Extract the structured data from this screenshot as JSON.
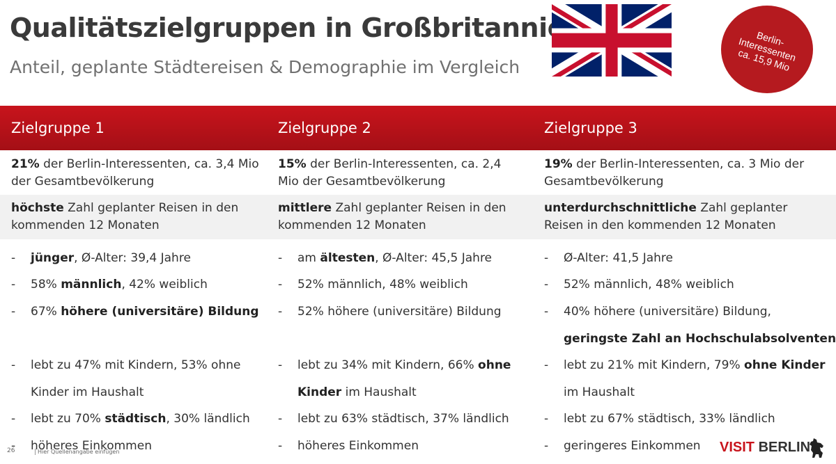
{
  "title": "Qualitätszielgruppen in Großbritannien",
  "subtitle": "Anteil, geplante Städtereisen & Demographie im Vergleich",
  "badge": {
    "line1": "Berlin-",
    "line2": "Interessenten",
    "line3": "ca. 15,9 Mio"
  },
  "accent_color": "#c8141c",
  "groups": [
    {
      "name": "Zielgruppe 1",
      "share_bold": "21%",
      "share_rest": " der Berlin-Interessenten, ca. 3,4 Mio der Gesamtbevölkerung",
      "trips_bold": "höchste",
      "trips_rest": " Zahl geplanter Reisen in den kommenden 12 Monaten",
      "items": [
        {
          "b": "jünger",
          "t": ", Ø-Alter: 39,4 Jahre"
        },
        {
          "pre": "58% ",
          "b": "männlich",
          "t": ", 42% weiblich"
        },
        {
          "pre": "67% ",
          "b": "höhere (universitäre) Bildung",
          "t": ""
        },
        {
          "t": "lebt zu 47% mit Kindern, 53% ohne"
        },
        {
          "t": "Kinder im Haushalt"
        },
        {
          "pre": "lebt zu 70% ",
          "b": "städtisch",
          "t": ", 30% ländlich"
        },
        {
          "t": "höheres Einkommen"
        }
      ]
    },
    {
      "name": "Zielgruppe 2",
      "share_bold": "15%",
      "share_rest": " der Berlin-Interessenten, ca. 2,4 Mio der Gesamtbevölkerung",
      "trips_bold": "mittlere",
      "trips_rest": " Zahl geplanter Reisen in den kommenden 12 Monaten",
      "items": [
        {
          "pre": "am ",
          "b": "ältesten",
          "t": ", Ø-Alter: 45,5 Jahre"
        },
        {
          "t": "52% männlich, 48% weiblich"
        },
        {
          "t": "52% höhere (universitäre) Bildung"
        },
        {
          "pre": "lebt zu 34% mit Kindern, 66% ",
          "b": "ohne",
          "t": ""
        },
        {
          "b": "Kinder",
          "t": " im Haushalt"
        },
        {
          "t": "lebt zu 63% städtisch, 37% ländlich"
        },
        {
          "t": "höheres Einkommen"
        }
      ]
    },
    {
      "name": "Zielgruppe 3",
      "share_bold": "19%",
      "share_rest": " der Berlin-Interessenten, ca. 3 Mio der Gesamtbevölkerung",
      "trips_bold": "unterdurchschnittliche",
      "trips_rest": " Zahl geplanter Reisen in den kommenden 12 Monaten",
      "items": [
        {
          "t": "Ø-Alter: 41,5 Jahre"
        },
        {
          "t": "52% männlich, 48% weiblich"
        },
        {
          "t": "40% höhere (universitäre) Bildung,"
        },
        {
          "b": "geringste Zahl an Hochschulabsolventen",
          "t": ""
        },
        {
          "pre": "lebt zu 21% mit Kindern, 79% ",
          "b": "ohne Kinder",
          "t": ""
        },
        {
          "t": "im Haushalt"
        },
        {
          "t": "lebt zu 67% städtisch, 33% ländlich"
        },
        {
          "t": "geringeres Einkommen"
        }
      ]
    }
  ],
  "dash": "-",
  "footer": {
    "page": "26",
    "source": "Hier Quellenangabe einfügen"
  },
  "logo": {
    "visit": "VISIT",
    "berlin": "BERLIN"
  }
}
